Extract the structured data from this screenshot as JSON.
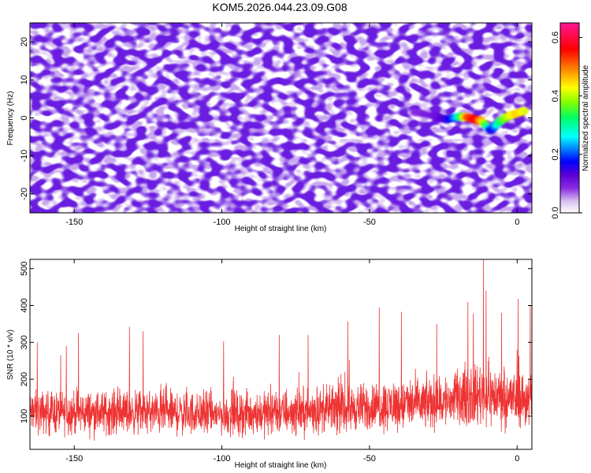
{
  "title": "KOM5.2026.044.23.09.G08",
  "chart_data": [
    {
      "type": "heatmap",
      "name": "spectrogram",
      "xlabel": "Height of straight line (km)",
      "ylabel": "Frequency (Hz)",
      "xlim": [
        -165,
        5
      ],
      "ylim": [
        -25,
        25
      ],
      "xticks": [
        -150,
        -100,
        -50,
        0
      ],
      "yticks": [
        -20,
        -10,
        0,
        10,
        20
      ],
      "colorbar": {
        "label": "Normalized spectral amplitude",
        "range": [
          0.0,
          0.65
        ],
        "ticks": [
          0.0,
          0.2,
          0.4,
          0.6
        ],
        "colormap": [
          "#ffffff",
          "#d9c2f2",
          "#8a2be2",
          "#5a00d6",
          "#0000ff",
          "#00ffff",
          "#00ff66",
          "#7fff00",
          "#ffff00",
          "#ff8000",
          "#ff0000",
          "#ff1493"
        ]
      },
      "features": {
        "background_noise_amplitude": [
          0.0,
          0.15
        ],
        "signal_track": {
          "x": [
            -35,
            -28,
            -24,
            -20,
            -17,
            -14,
            -12,
            -9,
            -6,
            -3,
            0,
            3
          ],
          "y": [
            1.5,
            0.5,
            -0.5,
            0.3,
            0.2,
            -0.5,
            -0.8,
            -3.5,
            -1,
            0.5,
            1.2,
            2
          ],
          "amplitude": [
            0.12,
            0.15,
            0.2,
            0.3,
            0.55,
            0.6,
            0.5,
            0.2,
            0.35,
            0.45,
            0.5,
            0.45
          ]
        }
      }
    },
    {
      "type": "line",
      "name": "snr",
      "xlabel": "Height of straight line (km)",
      "ylabel": "SNR (10 * v/v)",
      "xlim": [
        -165,
        5
      ],
      "ylim": [
        10,
        525
      ],
      "xticks": [
        -150,
        -100,
        -50,
        0
      ],
      "yticks": [
        100,
        200,
        300,
        400,
        500
      ],
      "color": "#ee3333",
      "envelope": {
        "x": [
          -165,
          -150,
          -125,
          -100,
          -75,
          -50,
          -30,
          -20,
          -12,
          -5,
          5
        ],
        "baseline": [
          110,
          110,
          110,
          105,
          110,
          125,
          135,
          145,
          160,
          150,
          145
        ],
        "spread": [
          45,
          45,
          45,
          45,
          45,
          50,
          55,
          60,
          65,
          60,
          60
        ]
      },
      "peaks": [
        {
          "x": -162.5,
          "y": 300
        },
        {
          "x": -152.7,
          "y": 290
        },
        {
          "x": -148.6,
          "y": 325
        },
        {
          "x": -131.3,
          "y": 342
        },
        {
          "x": -126.7,
          "y": 330
        },
        {
          "x": -99.4,
          "y": 303
        },
        {
          "x": -80.6,
          "y": 320
        },
        {
          "x": -70.8,
          "y": 320
        },
        {
          "x": -57.3,
          "y": 357
        },
        {
          "x": -46.7,
          "y": 395
        },
        {
          "x": -39.2,
          "y": 383
        },
        {
          "x": -27.2,
          "y": 350
        },
        {
          "x": -16.7,
          "y": 410
        },
        {
          "x": -14.8,
          "y": 378
        },
        {
          "x": -11.4,
          "y": 525
        },
        {
          "x": -10.5,
          "y": 440
        },
        {
          "x": -5.3,
          "y": 380
        },
        {
          "x": 0.3,
          "y": 418
        },
        {
          "x": 4.4,
          "y": 400
        }
      ]
    }
  ]
}
